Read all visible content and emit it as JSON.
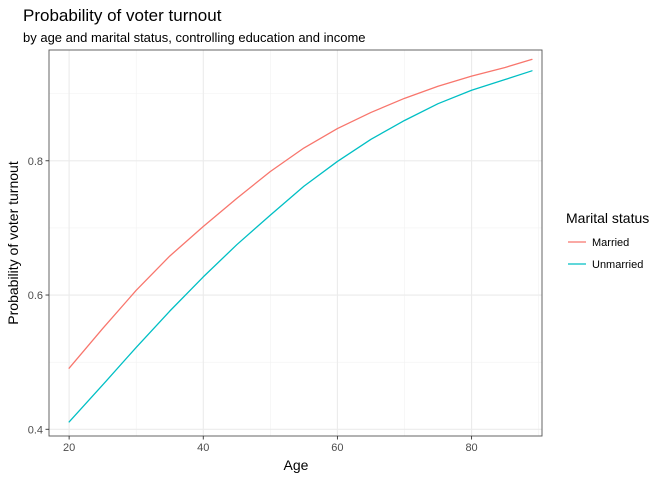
{
  "chart_data": {
    "type": "line",
    "title": "Probability of voter turnout",
    "subtitle": "by age and marital status, controlling education and income",
    "xlabel": "Age",
    "ylabel": "Probability of voter turnout",
    "xlim": [
      17,
      90.5
    ],
    "ylim": [
      0.39,
      0.965
    ],
    "x_ticks": [
      20,
      40,
      60,
      80
    ],
    "y_ticks": [
      0.4,
      0.6,
      0.8
    ],
    "y_tick_labels": [
      "0.4",
      "0.6",
      "0.8"
    ],
    "grid": true,
    "legend": {
      "title": "Marital status",
      "position": "right"
    },
    "series": [
      {
        "name": "Married",
        "color": "#F8766D",
        "x": [
          20,
          25,
          30,
          35,
          40,
          45,
          50,
          55,
          60,
          65,
          70,
          75,
          80,
          85,
          89
        ],
        "y": [
          0.491,
          0.55,
          0.607,
          0.658,
          0.702,
          0.744,
          0.784,
          0.819,
          0.848,
          0.872,
          0.893,
          0.911,
          0.926,
          0.939,
          0.951
        ]
      },
      {
        "name": "Unmarried",
        "color": "#00BFC4",
        "x": [
          20,
          25,
          30,
          35,
          40,
          45,
          50,
          55,
          60,
          65,
          70,
          75,
          80,
          85,
          89
        ],
        "y": [
          0.411,
          0.466,
          0.522,
          0.576,
          0.627,
          0.675,
          0.719,
          0.762,
          0.799,
          0.832,
          0.86,
          0.885,
          0.905,
          0.921,
          0.934
        ]
      }
    ]
  }
}
